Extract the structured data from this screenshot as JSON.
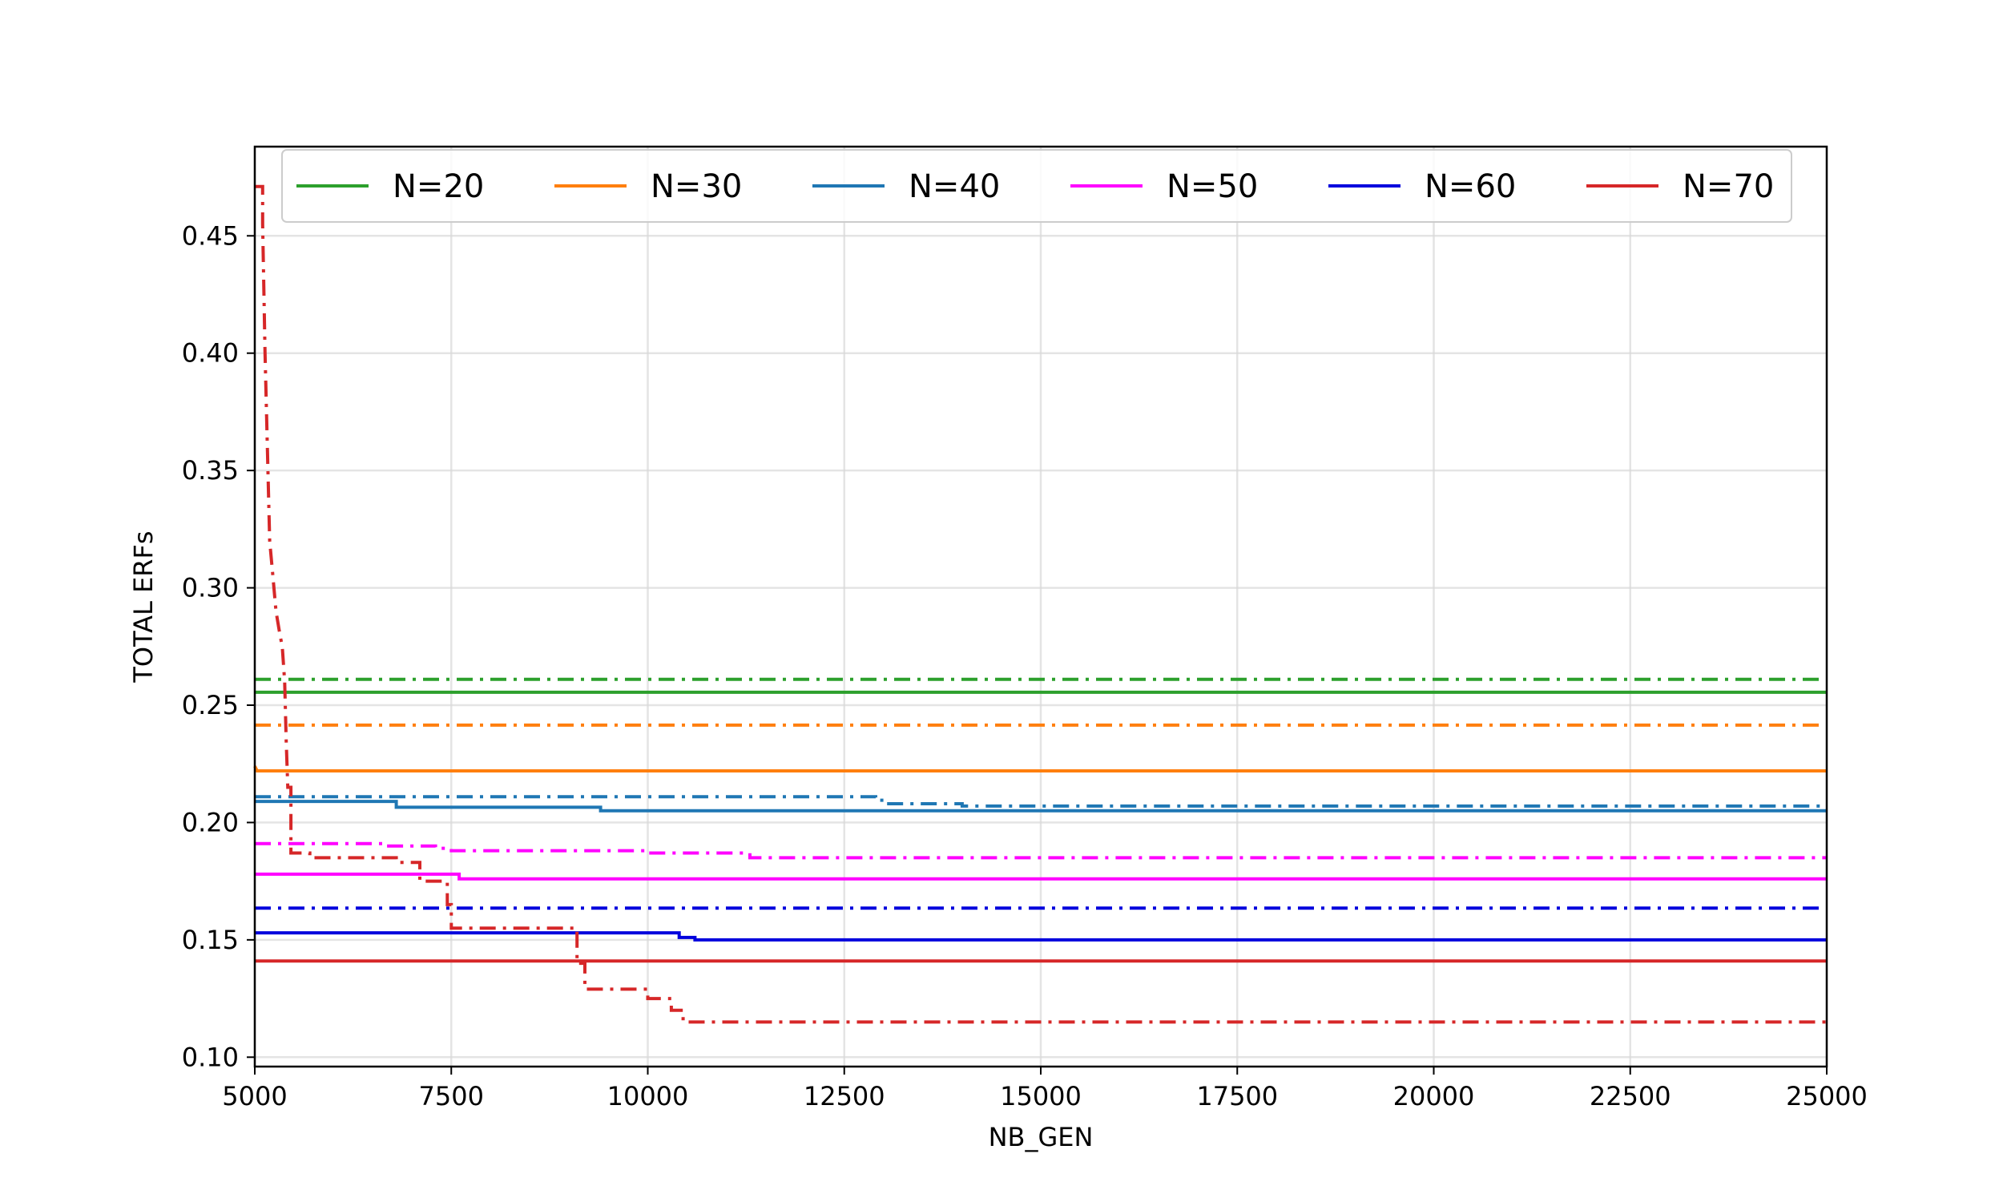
{
  "chart_data": {
    "type": "line",
    "xlabel": "NB_GEN",
    "ylabel": "TOTAL ERFs",
    "xlim": [
      5000,
      25000
    ],
    "ylim": [
      0.096,
      0.488
    ],
    "xticks": [
      5000,
      7500,
      10000,
      12500,
      15000,
      17500,
      20000,
      22500,
      25000
    ],
    "yticks": [
      0.1,
      0.15,
      0.2,
      0.25,
      0.3,
      0.35,
      0.4,
      0.45
    ],
    "grid": true,
    "legend": {
      "placement": "top",
      "columns": 6
    },
    "line_styles": {
      "solid": "solid",
      "dashdot": "dash-dot"
    },
    "series": [
      {
        "name": "N=20",
        "color": "#2ca02c",
        "style": "dashdot",
        "points": [
          [
            5000,
            0.261
          ],
          [
            25000,
            0.261
          ]
        ]
      },
      {
        "name": "N=20",
        "color": "#2ca02c",
        "style": "solid",
        "points": [
          [
            5000,
            0.2555
          ],
          [
            25000,
            0.2555
          ]
        ]
      },
      {
        "name": "N=30",
        "color": "#ff7f0e",
        "style": "dashdot",
        "points": [
          [
            5000,
            0.2415
          ],
          [
            25000,
            0.2415
          ]
        ]
      },
      {
        "name": "N=30",
        "color": "#ff7f0e",
        "style": "solid",
        "points": [
          [
            5000,
            0.224
          ],
          [
            5030,
            0.222
          ],
          [
            25000,
            0.222
          ]
        ]
      },
      {
        "name": "N=40",
        "color": "#1f77b4",
        "style": "dashdot",
        "points": [
          [
            5000,
            0.211
          ],
          [
            12900,
            0.211
          ],
          [
            12900,
            0.2095
          ],
          [
            13000,
            0.2095
          ],
          [
            13000,
            0.208
          ],
          [
            14000,
            0.208
          ],
          [
            14000,
            0.207
          ],
          [
            25000,
            0.207
          ]
        ]
      },
      {
        "name": "N=40",
        "color": "#1f77b4",
        "style": "solid",
        "points": [
          [
            5000,
            0.209
          ],
          [
            6800,
            0.209
          ],
          [
            6800,
            0.2065
          ],
          [
            9400,
            0.2065
          ],
          [
            9400,
            0.205
          ],
          [
            25000,
            0.205
          ]
        ]
      },
      {
        "name": "N=50",
        "color": "#ff00ff",
        "style": "dashdot",
        "points": [
          [
            5000,
            0.191
          ],
          [
            6600,
            0.191
          ],
          [
            6600,
            0.19
          ],
          [
            7300,
            0.19
          ],
          [
            7300,
            0.189
          ],
          [
            7500,
            0.189
          ],
          [
            7500,
            0.188
          ],
          [
            10000,
            0.188
          ],
          [
            10000,
            0.187
          ],
          [
            11300,
            0.187
          ],
          [
            11300,
            0.185
          ],
          [
            25000,
            0.185
          ]
        ]
      },
      {
        "name": "N=50",
        "color": "#ff00ff",
        "style": "solid",
        "points": [
          [
            5000,
            0.178
          ],
          [
            7600,
            0.178
          ],
          [
            7600,
            0.176
          ],
          [
            25000,
            0.176
          ]
        ]
      },
      {
        "name": "N=60",
        "color": "#0000dd",
        "style": "dashdot",
        "points": [
          [
            5000,
            0.1635
          ],
          [
            25000,
            0.1635
          ]
        ]
      },
      {
        "name": "N=60",
        "color": "#0000dd",
        "style": "solid",
        "points": [
          [
            5000,
            0.153
          ],
          [
            10400,
            0.153
          ],
          [
            10400,
            0.151
          ],
          [
            10600,
            0.151
          ],
          [
            10600,
            0.15
          ],
          [
            25000,
            0.15
          ]
        ]
      },
      {
        "name": "N=70",
        "color": "#d62728",
        "style": "dashdot",
        "points": [
          [
            5000,
            0.471
          ],
          [
            5100,
            0.471
          ],
          [
            5100,
            0.455
          ],
          [
            5130,
            0.4
          ],
          [
            5160,
            0.36
          ],
          [
            5190,
            0.32
          ],
          [
            5230,
            0.305
          ],
          [
            5270,
            0.29
          ],
          [
            5320,
            0.28
          ],
          [
            5350,
            0.275
          ],
          [
            5380,
            0.26
          ],
          [
            5400,
            0.235
          ],
          [
            5420,
            0.215
          ],
          [
            5460,
            0.215
          ],
          [
            5460,
            0.187
          ],
          [
            5700,
            0.187
          ],
          [
            5700,
            0.185
          ],
          [
            6800,
            0.185
          ],
          [
            6800,
            0.183
          ],
          [
            7100,
            0.183
          ],
          [
            7100,
            0.175
          ],
          [
            7450,
            0.175
          ],
          [
            7450,
            0.165
          ],
          [
            7500,
            0.165
          ],
          [
            7500,
            0.155
          ],
          [
            9100,
            0.155
          ],
          [
            9100,
            0.14
          ],
          [
            9200,
            0.14
          ],
          [
            9200,
            0.129
          ],
          [
            10000,
            0.129
          ],
          [
            10000,
            0.125
          ],
          [
            10300,
            0.125
          ],
          [
            10300,
            0.12
          ],
          [
            10450,
            0.12
          ],
          [
            10450,
            0.115
          ],
          [
            25000,
            0.115
          ]
        ]
      },
      {
        "name": "N=70",
        "color": "#d62728",
        "style": "solid",
        "points": [
          [
            5000,
            0.141
          ],
          [
            25000,
            0.141
          ]
        ]
      }
    ],
    "legend_entries": [
      {
        "name": "N=20",
        "color": "#2ca02c"
      },
      {
        "name": "N=30",
        "color": "#ff7f0e"
      },
      {
        "name": "N=40",
        "color": "#1f77b4"
      },
      {
        "name": "N=50",
        "color": "#ff00ff"
      },
      {
        "name": "N=60",
        "color": "#0000dd"
      },
      {
        "name": "N=70",
        "color": "#d62728"
      }
    ]
  }
}
